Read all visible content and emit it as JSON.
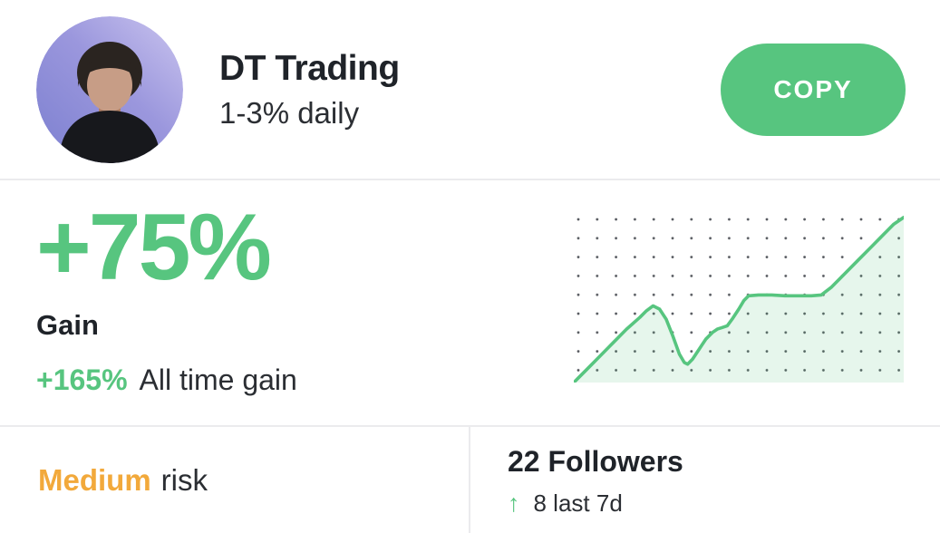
{
  "header": {
    "title": "DT Trading",
    "subtitle": "1-3% daily",
    "copy_button": "COPY"
  },
  "gain": {
    "period_value": "+75%",
    "label": "Gain",
    "all_time_value": "+165%",
    "all_time_label": "All time gain"
  },
  "risk": {
    "level": "Medium",
    "suffix": "risk",
    "level_color": "#F2A93B"
  },
  "followers": {
    "title": "22 Followers",
    "trend_icon": "↑",
    "trend_text": "8 last 7d"
  },
  "colors": {
    "accent_green": "#57C57F",
    "chart_fill_green": "#E7F5EC",
    "grid_dot": "#55585E",
    "divider": "#EBEBED",
    "text_dark": "#1F2329",
    "risk_orange": "#F2A93B"
  },
  "chart_data": {
    "type": "area",
    "title": "",
    "xlabel": "",
    "ylabel": "",
    "legend": "none",
    "axes": "hidden",
    "grid": "dotted",
    "grid_spacing_px": 20.8,
    "line_color": "#57C57F",
    "fill_color": "#E7F5EC",
    "x_range": [
      0,
      100
    ],
    "y_range": [
      0,
      100
    ],
    "points": [
      {
        "x": 0,
        "y": 0
      },
      {
        "x": 4,
        "y": 8
      },
      {
        "x": 8,
        "y": 16
      },
      {
        "x": 12,
        "y": 24
      },
      {
        "x": 16,
        "y": 32
      },
      {
        "x": 20,
        "y": 39
      },
      {
        "x": 22,
        "y": 43
      },
      {
        "x": 24,
        "y": 46
      },
      {
        "x": 26,
        "y": 44
      },
      {
        "x": 28,
        "y": 38
      },
      {
        "x": 30,
        "y": 28
      },
      {
        "x": 32,
        "y": 17
      },
      {
        "x": 33.5,
        "y": 12
      },
      {
        "x": 34.5,
        "y": 11
      },
      {
        "x": 36,
        "y": 14
      },
      {
        "x": 38,
        "y": 20
      },
      {
        "x": 40,
        "y": 26
      },
      {
        "x": 42,
        "y": 30
      },
      {
        "x": 43.5,
        "y": 32
      },
      {
        "x": 45,
        "y": 33
      },
      {
        "x": 46.5,
        "y": 34
      },
      {
        "x": 48,
        "y": 38
      },
      {
        "x": 50,
        "y": 44
      },
      {
        "x": 51.5,
        "y": 49
      },
      {
        "x": 53,
        "y": 52
      },
      {
        "x": 56,
        "y": 52.5
      },
      {
        "x": 60,
        "y": 52.5
      },
      {
        "x": 64,
        "y": 52
      },
      {
        "x": 68,
        "y": 52
      },
      {
        "x": 72,
        "y": 52
      },
      {
        "x": 75,
        "y": 52.5
      },
      {
        "x": 78,
        "y": 57
      },
      {
        "x": 82,
        "y": 65
      },
      {
        "x": 86,
        "y": 73
      },
      {
        "x": 90,
        "y": 81
      },
      {
        "x": 94,
        "y": 89
      },
      {
        "x": 97,
        "y": 95
      },
      {
        "x": 100,
        "y": 99
      }
    ]
  }
}
